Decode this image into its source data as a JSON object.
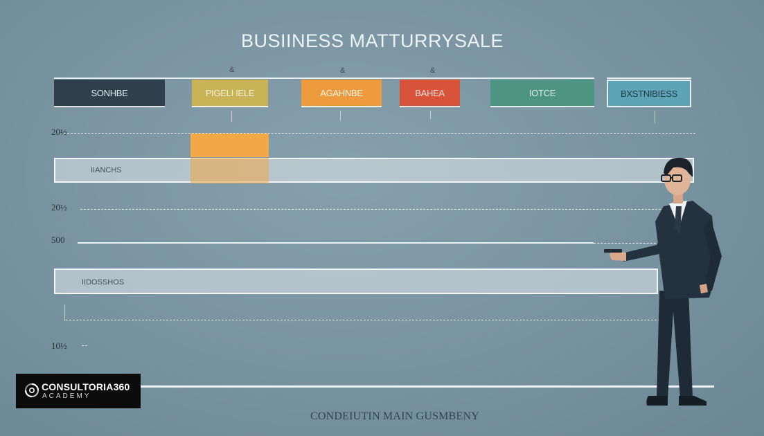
{
  "title": "BUSIINESS MATTURRYSALE",
  "stage_marks": [
    "&",
    "&",
    "&"
  ],
  "stages": [
    {
      "label": "SONHBE",
      "color": "#2f3f4b",
      "text_color": "#e6edf0"
    },
    {
      "label": "PIGELI IELE",
      "color": "#c8b356",
      "text_color": "#f6f1d8"
    },
    {
      "label": "AGAHNBE",
      "color": "#ee9b3e",
      "text_color": "#fff4e2"
    },
    {
      "label": "BAHEA",
      "color": "#d9533a",
      "text_color": "#fde3dc"
    },
    {
      "label": "IOTCE",
      "color": "#4d9481",
      "text_color": "#dcefe9"
    },
    {
      "label": "BXSTNIBIESS",
      "color": "#5ea3b6",
      "text_color": "#1e3d48"
    }
  ],
  "y_labels": [
    "20½ ",
    "20½ ",
    "500",
    "10½ "
  ],
  "bands": [
    {
      "label": "IIANCHS"
    },
    {
      "label": "IIDOSSHOS"
    }
  ],
  "highlight_color": "#f2a847",
  "caption": "CONDEIUTIN MAIN GUSMBENY",
  "logo": {
    "name": "CONSULTORIA360",
    "sub": "ACADEMY"
  }
}
